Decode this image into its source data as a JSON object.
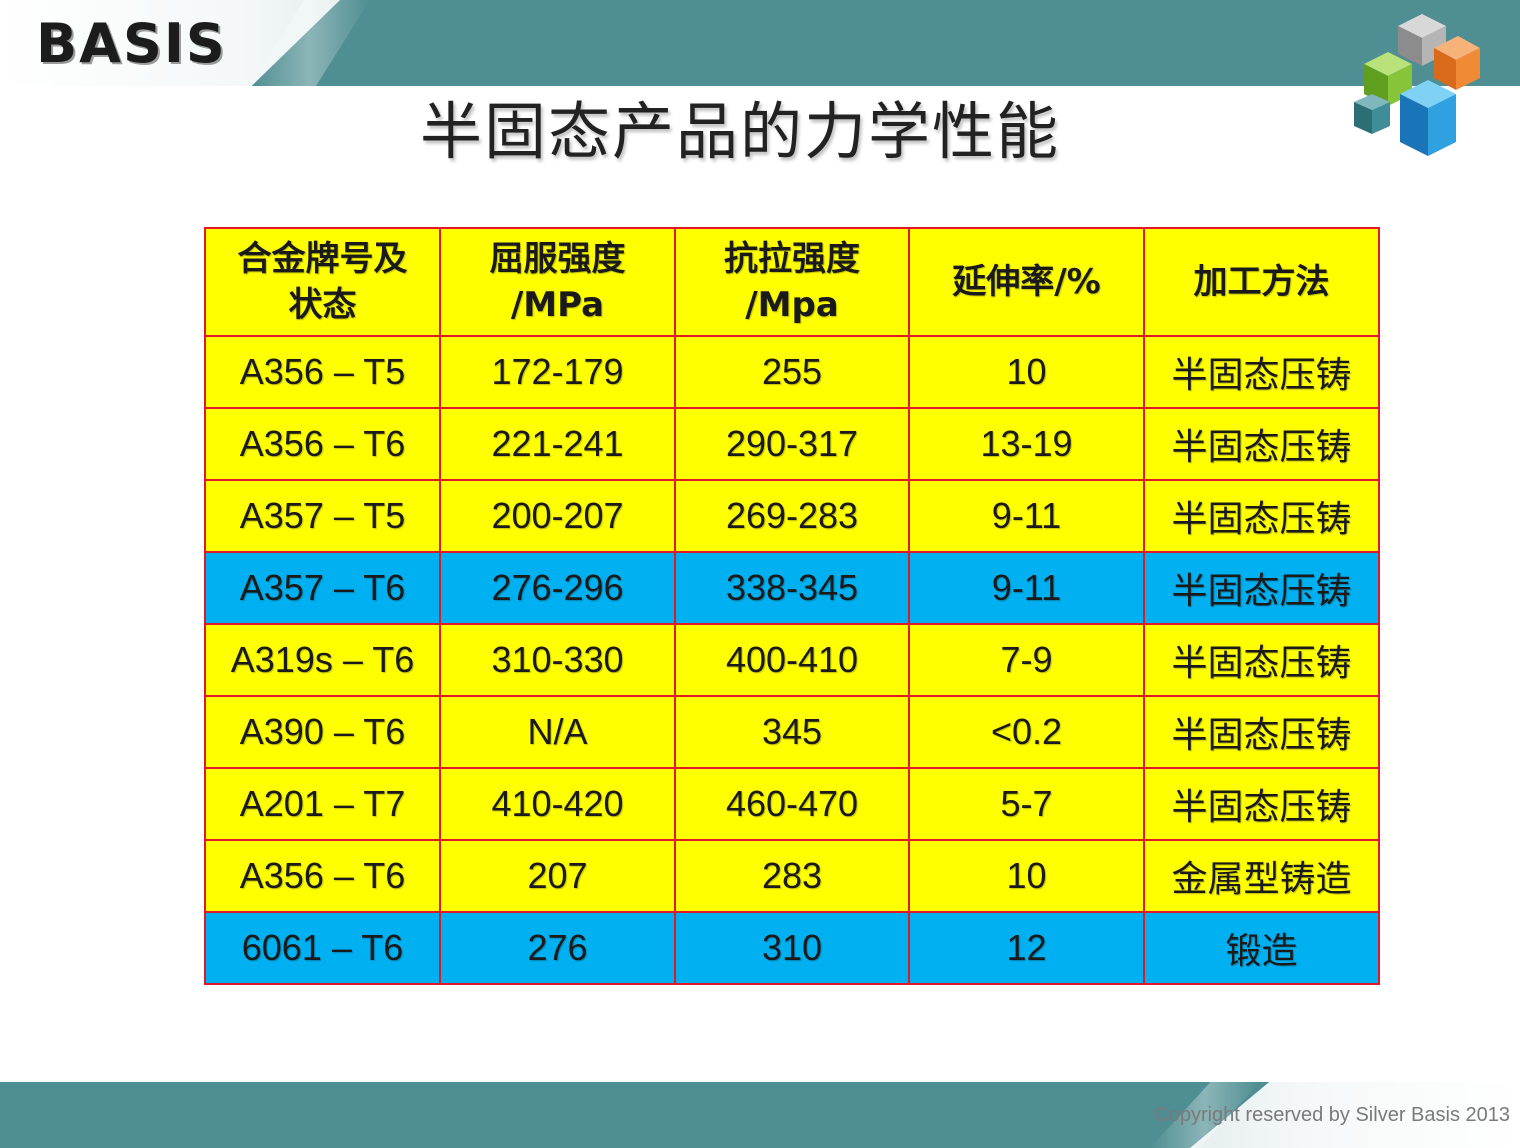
{
  "header": {
    "logo_text": "BASIS",
    "colors": {
      "band": "#4f8e92",
      "accent_yellow": "#ffff00",
      "accent_blue": "#00b0f0",
      "grid_red": "#e0182a"
    }
  },
  "title": "半固态产品的力学性能",
  "table": {
    "headers": [
      "合金牌号及状态",
      "屈服强度/MPa",
      "抗拉强度/Mpa",
      "延伸率/%",
      "加工方法"
    ],
    "header_lines": [
      [
        "合金牌号及",
        "状态"
      ],
      [
        "屈服强度",
        "/MPa"
      ],
      [
        "抗拉强度",
        "/Mpa"
      ],
      [
        "延伸率/%"
      ],
      [
        "加工方法"
      ]
    ],
    "rows": [
      {
        "highlight": false,
        "cells": [
          "A356 – T5",
          "172-179",
          "255",
          "10",
          "半固态压铸"
        ]
      },
      {
        "highlight": false,
        "cells": [
          "A356 – T6",
          "221-241",
          "290-317",
          "13-19",
          "半固态压铸"
        ]
      },
      {
        "highlight": false,
        "cells": [
          "A357 – T5",
          "200-207",
          "269-283",
          "9-11",
          "半固态压铸"
        ]
      },
      {
        "highlight": true,
        "cells": [
          "A357 – T6",
          "276-296",
          "338-345",
          "9-11",
          "半固态压铸"
        ]
      },
      {
        "highlight": false,
        "cells": [
          "A319s – T6",
          "310-330",
          "400-410",
          "7-9",
          "半固态压铸"
        ]
      },
      {
        "highlight": false,
        "cells": [
          "A390 – T6",
          "N/A",
          "345",
          "<0.2",
          "半固态压铸"
        ]
      },
      {
        "highlight": false,
        "cells": [
          "A201 – T7",
          "410-420",
          "460-470",
          "5-7",
          "半固态压铸"
        ]
      },
      {
        "highlight": false,
        "cells": [
          "A356 – T6",
          "207",
          "283",
          "10",
          "金属型铸造"
        ]
      },
      {
        "highlight": true,
        "cells": [
          "6061 – T6",
          "276",
          "310",
          "12",
          "锻造"
        ]
      }
    ]
  },
  "footer": {
    "copyright": "Copyright reserved by Silver Basis 2013"
  },
  "icons": [
    "cubes-logo-icon"
  ]
}
